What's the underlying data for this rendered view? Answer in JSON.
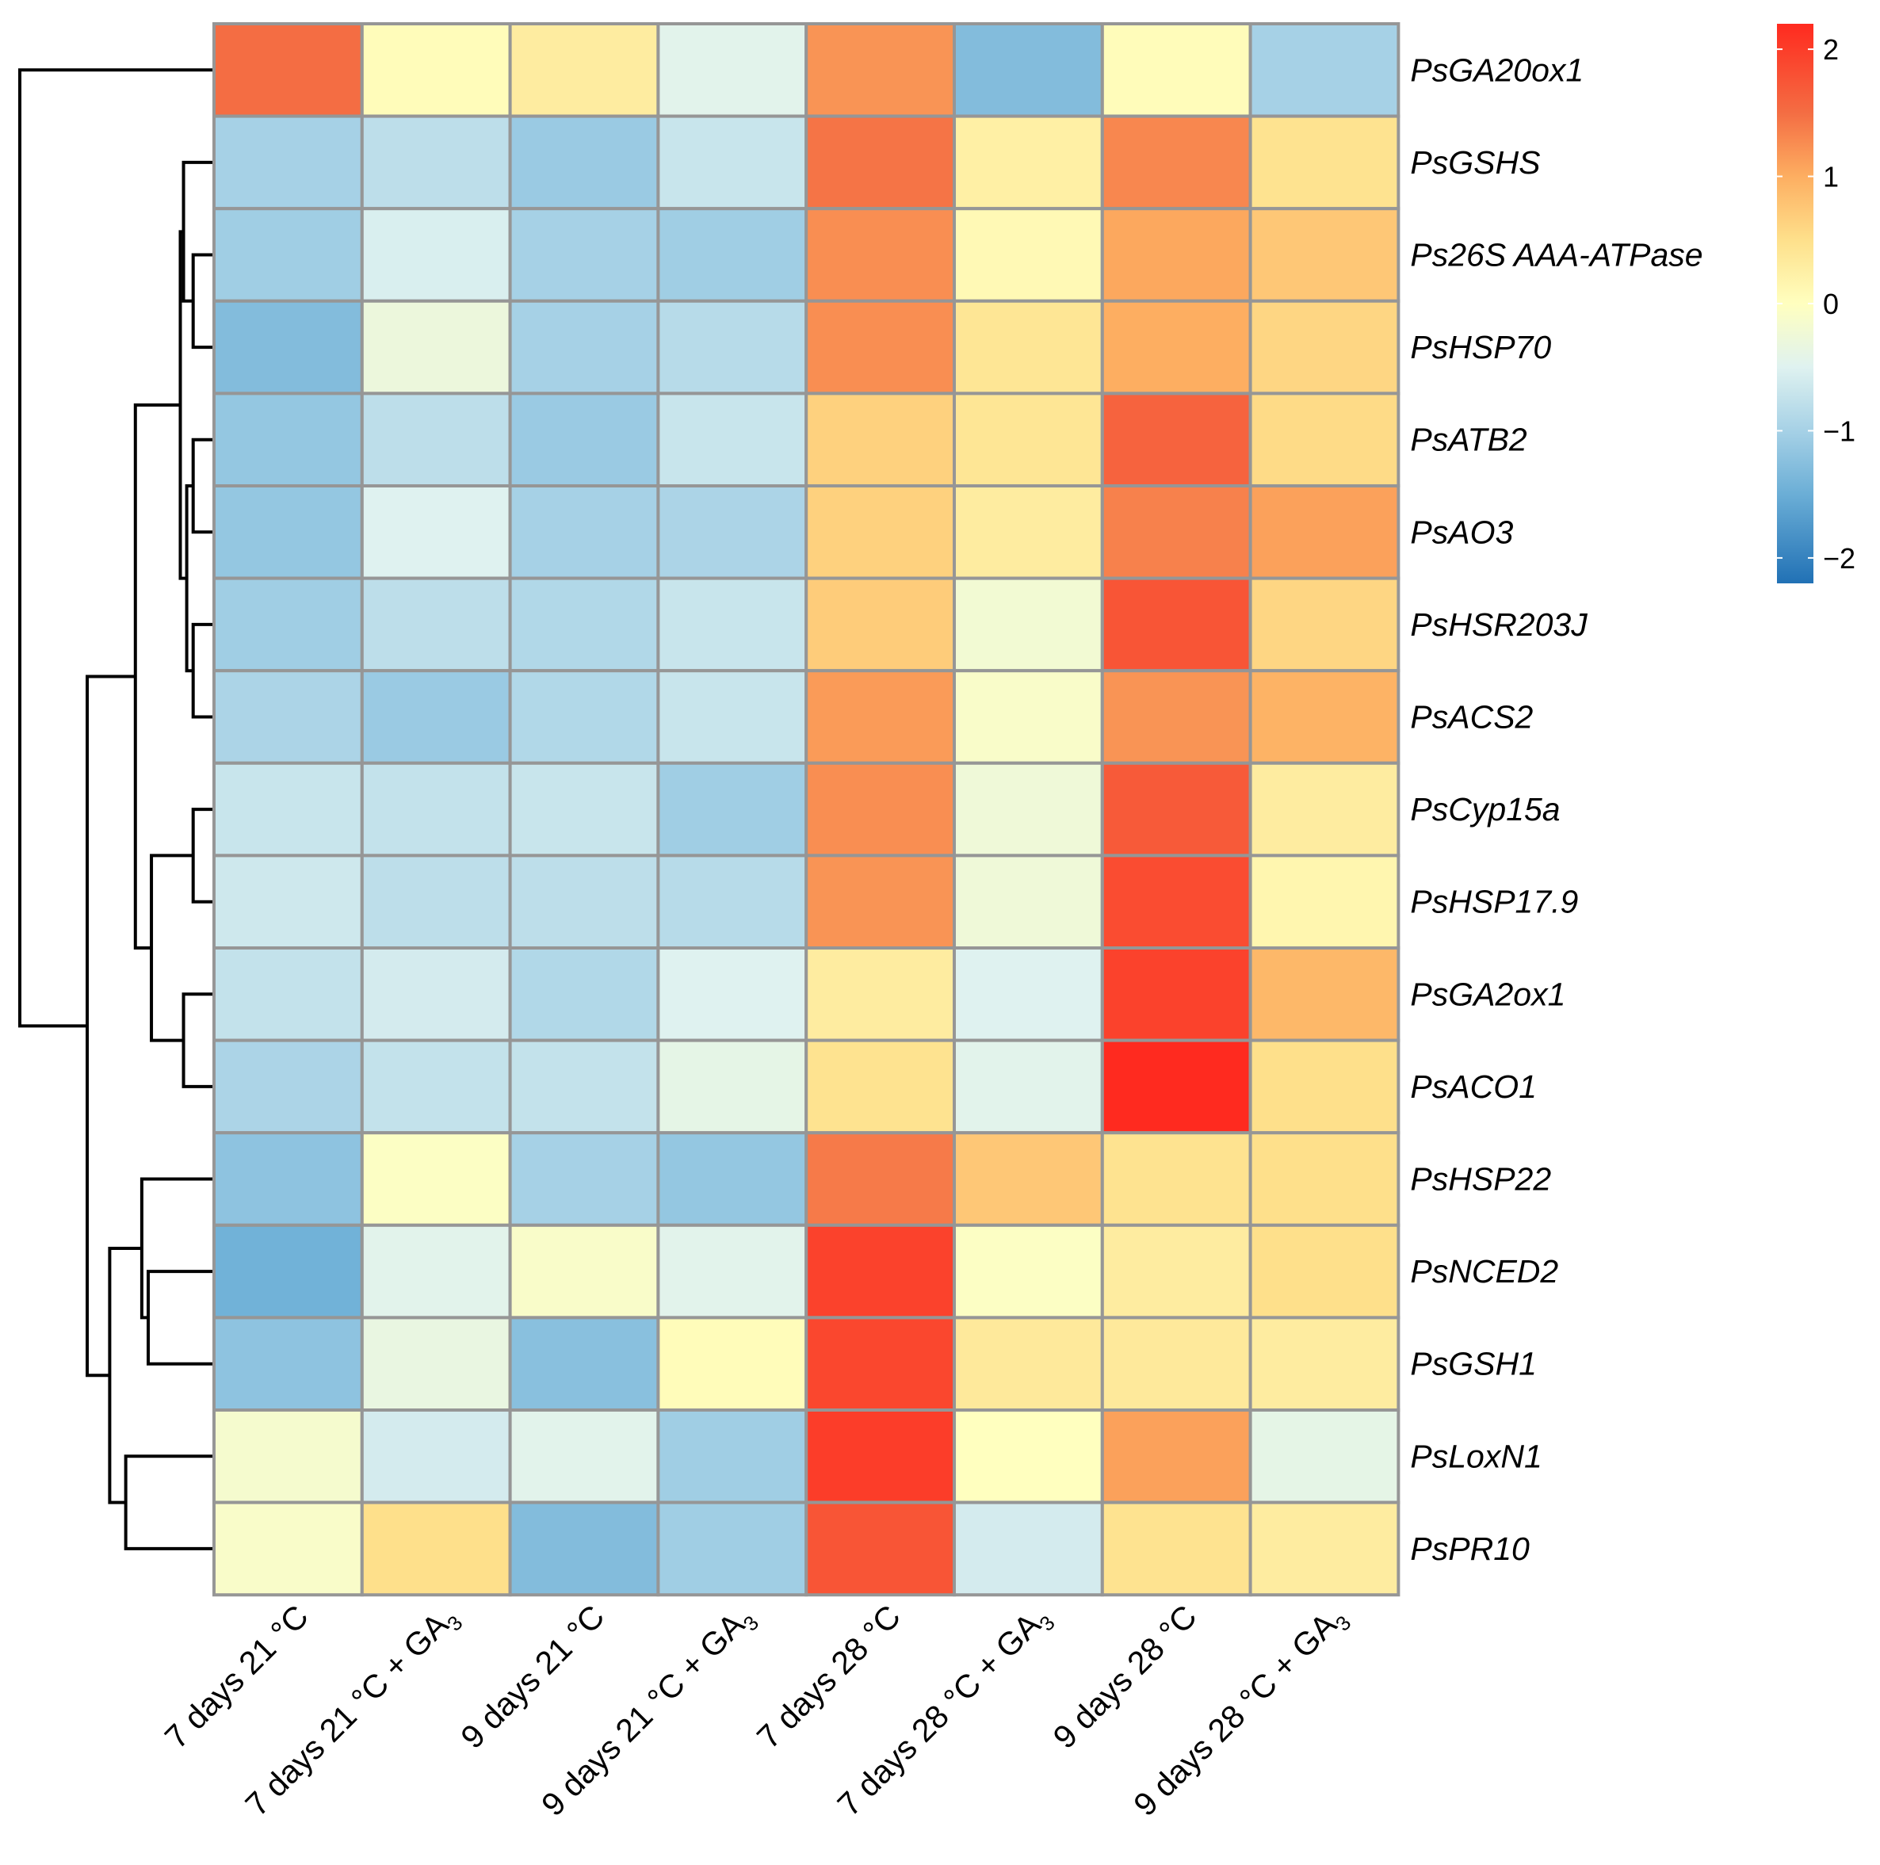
{
  "chart_data": {
    "type": "heatmap",
    "title": "",
    "rows": [
      {
        "label": "PsGA20ox1",
        "label_italic_prefix": "PsGA20ox1",
        "values": [
          1.5,
          0.05,
          0.3,
          -0.45,
          1.2,
          -1.3,
          0.05,
          -1.0
        ]
      },
      {
        "label": "PsGSHS",
        "values": [
          -1.0,
          -0.8,
          -1.1,
          -0.7,
          1.45,
          0.25,
          1.3,
          0.45
        ]
      },
      {
        "label": "Ps26S AAA-ATPase",
        "values": [
          -1.05,
          -0.55,
          -1.0,
          -1.05,
          1.25,
          0.1,
          1.05,
          0.75
        ]
      },
      {
        "label": "PsHSP70",
        "values": [
          -1.3,
          -0.3,
          -1.0,
          -0.85,
          1.25,
          0.4,
          1.0,
          0.6
        ]
      },
      {
        "label": "PsATB2",
        "values": [
          -1.15,
          -0.8,
          -1.1,
          -0.7,
          0.65,
          0.4,
          1.6,
          0.55
        ]
      },
      {
        "label": "PsAO3",
        "values": [
          -1.15,
          -0.5,
          -1.0,
          -0.95,
          0.65,
          0.3,
          1.35,
          1.1
        ]
      },
      {
        "label": "PsHSR203J",
        "values": [
          -1.05,
          -0.8,
          -0.9,
          -0.7,
          0.7,
          -0.2,
          1.75,
          0.6
        ]
      },
      {
        "label": "PsACS2",
        "values": [
          -0.95,
          -1.1,
          -0.9,
          -0.7,
          1.15,
          -0.1,
          1.2,
          0.95
        ]
      },
      {
        "label": "PsCyp15a",
        "values": [
          -0.7,
          -0.75,
          -0.7,
          -1.05,
          1.25,
          -0.25,
          1.7,
          0.3
        ]
      },
      {
        "label": "PsHSP17.9",
        "values": [
          -0.65,
          -0.8,
          -0.8,
          -0.85,
          1.2,
          -0.25,
          1.85,
          0.15
        ]
      },
      {
        "label": "PsGA2ox1",
        "values": [
          -0.75,
          -0.6,
          -0.9,
          -0.5,
          0.3,
          -0.5,
          1.95,
          0.9
        ]
      },
      {
        "label": "PsACO1",
        "values": [
          -0.95,
          -0.75,
          -0.75,
          -0.4,
          0.45,
          -0.45,
          2.2,
          0.5
        ]
      },
      {
        "label": "PsHSP22",
        "values": [
          -1.2,
          -0.05,
          -1.0,
          -1.15,
          1.4,
          0.75,
          0.45,
          0.5
        ]
      },
      {
        "label": "PsNCED2",
        "values": [
          -1.45,
          -0.45,
          -0.1,
          -0.45,
          1.95,
          -0.05,
          0.3,
          0.5
        ]
      },
      {
        "label": "PsGSH1",
        "values": [
          -1.2,
          -0.35,
          -1.25,
          0.05,
          1.9,
          0.35,
          0.35,
          0.3
        ]
      },
      {
        "label": "PsLoxN1",
        "values": [
          -0.15,
          -0.6,
          -0.45,
          -1.05,
          2.0,
          0.0,
          1.1,
          -0.4
        ]
      },
      {
        "label": "PsPR10",
        "values": [
          -0.1,
          0.5,
          -1.3,
          -1.05,
          1.75,
          -0.6,
          0.45,
          0.3
        ]
      }
    ],
    "columns": [
      {
        "label": "7 days 21 °C"
      },
      {
        "label": "7 days 21 °C + GA",
        "subscript": "3"
      },
      {
        "label": "9 days 21 °C"
      },
      {
        "label": "9 days 21 °C + GA",
        "subscript": "3"
      },
      {
        "label": "7 days 28 °C"
      },
      {
        "label": "7 days 28 °C + GA",
        "subscript": "3"
      },
      {
        "label": "9 days 28 °C"
      },
      {
        "label": "9 days 28 °C + GA",
        "subscript": "3"
      }
    ],
    "color_scale": {
      "min": -2.2,
      "max": 2.2,
      "stops": [
        {
          "value": -2.2,
          "color": "#2171b5"
        },
        {
          "value": -1.5,
          "color": "#6baed6"
        },
        {
          "value": -1.0,
          "color": "#a6d1e6"
        },
        {
          "value": -0.5,
          "color": "#dff2f0"
        },
        {
          "value": 0.0,
          "color": "#ffffbf"
        },
        {
          "value": 0.5,
          "color": "#fee08b"
        },
        {
          "value": 1.0,
          "color": "#fdae61"
        },
        {
          "value": 1.5,
          "color": "#f46d43"
        },
        {
          "value": 2.2,
          "color": "#ff2a1f"
        }
      ],
      "ticks": [
        {
          "value": 2,
          "label": "2"
        },
        {
          "value": 1,
          "label": "1"
        },
        {
          "value": 0,
          "label": "0"
        },
        {
          "value": -1,
          "label": "−1"
        },
        {
          "value": -2,
          "label": "−2"
        }
      ]
    },
    "row_dendrogram": {
      "leaf_order": [
        "PsGA20ox1",
        "PsGSHS",
        "Ps26S AAA-ATPase",
        "PsHSP70",
        "PsATB2",
        "PsAO3",
        "PsHSR203J",
        "PsACS2",
        "PsCyp15a",
        "PsHSP17.9",
        "PsGA2ox1",
        "PsACO1",
        "PsHSP22",
        "PsNCED2",
        "PsGSH1",
        "PsLoxN1",
        "PsPR10"
      ],
      "merges": [
        {
          "a": 2,
          "b": 3,
          "height": 0.6
        },
        {
          "a": 1,
          "b": -1,
          "height": 0.9
        },
        {
          "a": 4,
          "b": 5,
          "height": 0.6
        },
        {
          "a": 6,
          "b": 7,
          "height": 0.6
        },
        {
          "a": -3,
          "b": -4,
          "height": 0.8
        },
        {
          "a": -2,
          "b": -5,
          "height": 1.0
        },
        {
          "a": 8,
          "b": 9,
          "height": 0.6
        },
        {
          "a": 10,
          "b": 11,
          "height": 0.9
        },
        {
          "a": -7,
          "b": -8,
          "height": 1.9
        },
        {
          "a": -6,
          "b": -9,
          "height": 2.4
        },
        {
          "a": 13,
          "b": 14,
          "height": 2.0
        },
        {
          "a": 12,
          "b": -11,
          "height": 2.2
        },
        {
          "a": 15,
          "b": 16,
          "height": 2.7
        },
        {
          "a": -12,
          "b": -13,
          "height": 3.2
        },
        {
          "a": -10,
          "b": -14,
          "height": 3.9
        },
        {
          "a": 0,
          "b": -15,
          "height": 6.0
        }
      ]
    }
  }
}
